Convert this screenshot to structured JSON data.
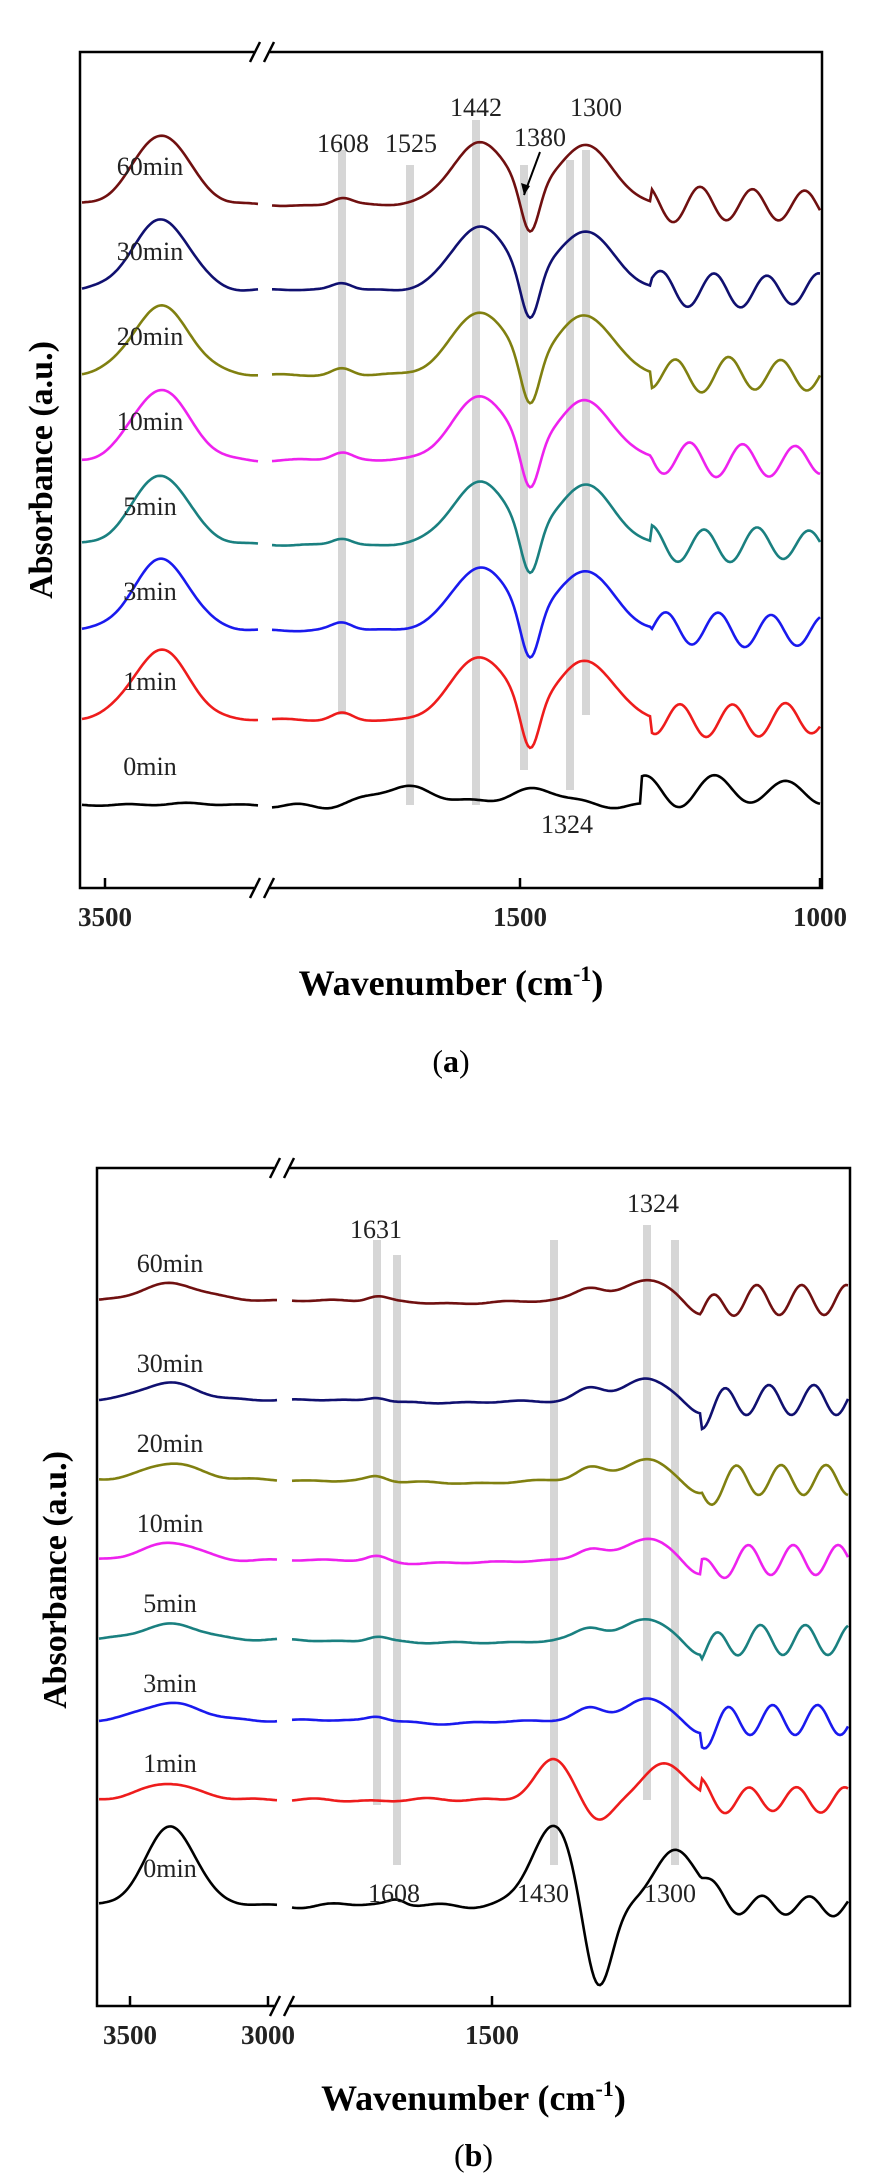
{
  "chart_data": [
    {
      "panel": "(a)",
      "panel_letter": "a",
      "type": "line",
      "xlabel": "Wavenumber (cm-1)",
      "xlabel_main": "Wavenumber (cm",
      "xlabel_sup": "-1",
      "xlabel_close": ")",
      "ylabel": "Absorbance (a.u.)",
      "x_axis_segments": [
        {
          "range_cm": [
            3700,
            3150
          ],
          "ticks": [
            3500
          ]
        },
        {
          "range_cm": [
            1750,
            1000
          ],
          "ticks": [
            1500,
            1000
          ]
        }
      ],
      "tick_labels": [
        "3500",
        "1500",
        "1000"
      ],
      "marker_lines": [
        1608,
        1525,
        1442,
        1380,
        1324,
        1300
      ],
      "annotations": [
        "1608",
        "1525",
        "1442",
        "1380",
        "1300",
        "1324"
      ],
      "series": [
        {
          "name": "0min",
          "color": "#000000",
          "spectrum": "initial"
        },
        {
          "name": "1min",
          "color": "#ee1c1c",
          "spectrum": "peaks"
        },
        {
          "name": "3min",
          "color": "#1a1aee",
          "spectrum": "peaks"
        },
        {
          "name": "5min",
          "color": "#1a8080",
          "spectrum": "peaks"
        },
        {
          "name": "10min",
          "color": "#ee22ee",
          "spectrum": "peaks"
        },
        {
          "name": "20min",
          "color": "#808010",
          "spectrum": "peaks"
        },
        {
          "name": "30min",
          "color": "#101070",
          "spectrum": "peaks"
        },
        {
          "name": "60min",
          "color": "#701010",
          "spectrum": "peaks"
        }
      ]
    },
    {
      "panel": "(b)",
      "panel_letter": "b",
      "type": "line",
      "xlabel": "Wavenumber (cm-1)",
      "xlabel_main": "Wavenumber   (cm",
      "xlabel_sup": "-1",
      "xlabel_close": ")",
      "ylabel": "Absorbance (a.u.)",
      "x_axis_segments": [
        {
          "range_cm": [
            3650,
            2950
          ],
          "ticks": [
            3500,
            3000
          ]
        },
        {
          "range_cm": [
            1950,
            1000
          ],
          "ticks": [
            1500
          ]
        }
      ],
      "tick_labels": [
        "3500",
        "3000",
        "1500"
      ],
      "marker_lines": [
        1631,
        1608,
        1430,
        1324,
        1300
      ],
      "annotations": [
        "1631",
        "1324",
        "1608",
        "1430",
        "1300"
      ],
      "series": [
        {
          "name": "0min",
          "color": "#000000",
          "spectrum": "initial"
        },
        {
          "name": "1min",
          "color": "#ee1c1c",
          "spectrum": "peaks"
        },
        {
          "name": "3min",
          "color": "#1a1aee",
          "spectrum": "flat"
        },
        {
          "name": "5min",
          "color": "#1a8080",
          "spectrum": "flat"
        },
        {
          "name": "10min",
          "color": "#ee22ee",
          "spectrum": "flat"
        },
        {
          "name": "20min",
          "color": "#808010",
          "spectrum": "flat"
        },
        {
          "name": "30min",
          "color": "#101070",
          "spectrum": "flat"
        },
        {
          "name": "60min",
          "color": "#701010",
          "spectrum": "flat"
        }
      ]
    }
  ]
}
